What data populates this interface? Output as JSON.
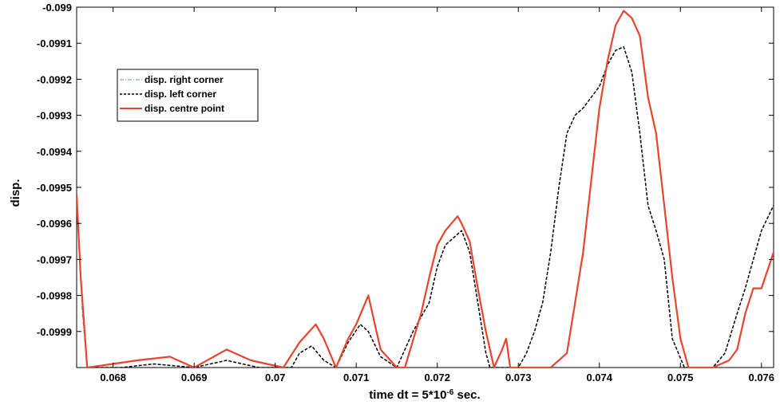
{
  "chart_data": {
    "type": "line",
    "title": "",
    "xlabel_prefix": "time dt = 5*10",
    "xlabel_exp": "-6",
    "xlabel_suffix": " sec.",
    "ylabel": "disp.",
    "xlim": [
      0.06755,
      0.07615
    ],
    "ylim": [
      -0.1,
      -0.099
    ],
    "xticks": [
      0.068,
      0.069,
      0.07,
      0.071,
      0.072,
      0.073,
      0.074,
      0.075,
      0.076
    ],
    "xtick_labels": [
      "0.068",
      "0.069",
      "0.07",
      "0.071",
      "0.072",
      "0.073",
      "0.074",
      "0.075",
      "0.076"
    ],
    "yticks": [
      -0.099,
      -0.0991,
      -0.0992,
      -0.0993,
      -0.0994,
      -0.0995,
      -0.0996,
      -0.0997,
      -0.0998,
      -0.0999
    ],
    "ytick_labels": [
      "-0.099",
      "-0.0991",
      "-0.0992",
      "-0.0993",
      "-0.0994",
      "-0.0995",
      "-0.0996",
      "-0.0997",
      "-0.0998",
      "-0.0999"
    ],
    "grid": false,
    "legend_position": "upper-left",
    "series": [
      {
        "name": "disp. right corner",
        "color": "#5b8fd6",
        "dash": "dash-dot",
        "x": [
          0.06755,
          0.06762,
          0.06768
        ],
        "y": [
          -0.09952,
          -0.09985,
          -0.1
        ]
      },
      {
        "name": "disp. left corner",
        "color": "#000000",
        "dash": "dash",
        "x": [
          0.06755,
          0.0676,
          0.06768,
          0.0681,
          0.0685,
          0.069,
          0.0694,
          0.0698,
          0.0702,
          0.0703,
          0.07045,
          0.0706,
          0.07075,
          0.0709,
          0.07105,
          0.07115,
          0.0713,
          0.0715,
          0.0717,
          0.0719,
          0.072,
          0.0721,
          0.0722,
          0.0723,
          0.0724,
          0.0725,
          0.0726,
          0.07265,
          0.0728,
          0.0729,
          0.073,
          0.0731,
          0.0732,
          0.0733,
          0.0734,
          0.0735,
          0.0736,
          0.0737,
          0.0738,
          0.0739,
          0.074,
          0.0741,
          0.0742,
          0.0743,
          0.0744,
          0.0745,
          0.0746,
          0.0747,
          0.0748,
          0.0749,
          0.07505,
          0.0752,
          0.0754,
          0.07555,
          0.0757,
          0.0758,
          0.0759,
          0.076,
          0.07615
        ],
        "y": [
          -0.09952,
          -0.09975,
          -0.1,
          -0.1,
          -0.09999,
          -0.1,
          -0.09998,
          -0.1,
          -0.1,
          -0.09996,
          -0.09994,
          -0.09998,
          -0.1,
          -0.09993,
          -0.09988,
          -0.0999,
          -0.09997,
          -0.1,
          -0.0999,
          -0.09982,
          -0.09972,
          -0.09966,
          -0.09964,
          -0.09962,
          -0.09968,
          -0.09982,
          -0.09996,
          -0.1,
          -0.1,
          -0.1,
          -0.1,
          -0.09996,
          -0.0999,
          -0.09982,
          -0.09968,
          -0.0995,
          -0.09935,
          -0.0993,
          -0.09928,
          -0.09925,
          -0.09922,
          -0.09916,
          -0.09912,
          -0.09911,
          -0.09918,
          -0.09935,
          -0.09955,
          -0.09962,
          -0.0997,
          -0.09992,
          -0.1,
          -0.1,
          -0.1,
          -0.09996,
          -0.09985,
          -0.09978,
          -0.0997,
          -0.09962,
          -0.09955
        ]
      },
      {
        "name": "disp. centre point",
        "color": "#e8442e",
        "dash": "solid",
        "x": [
          0.06755,
          0.0676,
          0.06768,
          0.0683,
          0.0687,
          0.069,
          0.0694,
          0.0697,
          0.0701,
          0.0703,
          0.0705,
          0.0706,
          0.07075,
          0.0709,
          0.071,
          0.07115,
          0.0713,
          0.0715,
          0.0716,
          0.0718,
          0.0719,
          0.072,
          0.0721,
          0.07225,
          0.0723,
          0.0724,
          0.0725,
          0.0726,
          0.0727,
          0.0728,
          0.07285,
          0.0729,
          0.073,
          0.0731,
          0.0732,
          0.0734,
          0.0736,
          0.0737,
          0.0738,
          0.0739,
          0.074,
          0.0741,
          0.0742,
          0.0743,
          0.0744,
          0.0745,
          0.0746,
          0.0747,
          0.0748,
          0.0749,
          0.075,
          0.0751,
          0.0752,
          0.0754,
          0.0756,
          0.0757,
          0.0758,
          0.0759,
          0.076,
          0.07615
        ],
        "y": [
          -0.09952,
          -0.09975,
          -0.1,
          -0.09998,
          -0.09997,
          -0.1,
          -0.09995,
          -0.09998,
          -0.1,
          -0.09993,
          -0.09988,
          -0.09992,
          -0.1,
          -0.09992,
          -0.09988,
          -0.0998,
          -0.09995,
          -0.1,
          -0.1,
          -0.09985,
          -0.09975,
          -0.09966,
          -0.09962,
          -0.09958,
          -0.0996,
          -0.09965,
          -0.09978,
          -0.0999,
          -0.1,
          -0.09995,
          -0.09992,
          -0.1,
          -0.1,
          -0.1,
          -0.1,
          -0.1,
          -0.09996,
          -0.09982,
          -0.09968,
          -0.09948,
          -0.09928,
          -0.09915,
          -0.09905,
          -0.09901,
          -0.09903,
          -0.09908,
          -0.09925,
          -0.09935,
          -0.09955,
          -0.09975,
          -0.09992,
          -0.1,
          -0.1,
          -0.1,
          -0.09998,
          -0.09995,
          -0.09985,
          -0.09978,
          -0.09978,
          -0.09968
        ]
      }
    ]
  }
}
